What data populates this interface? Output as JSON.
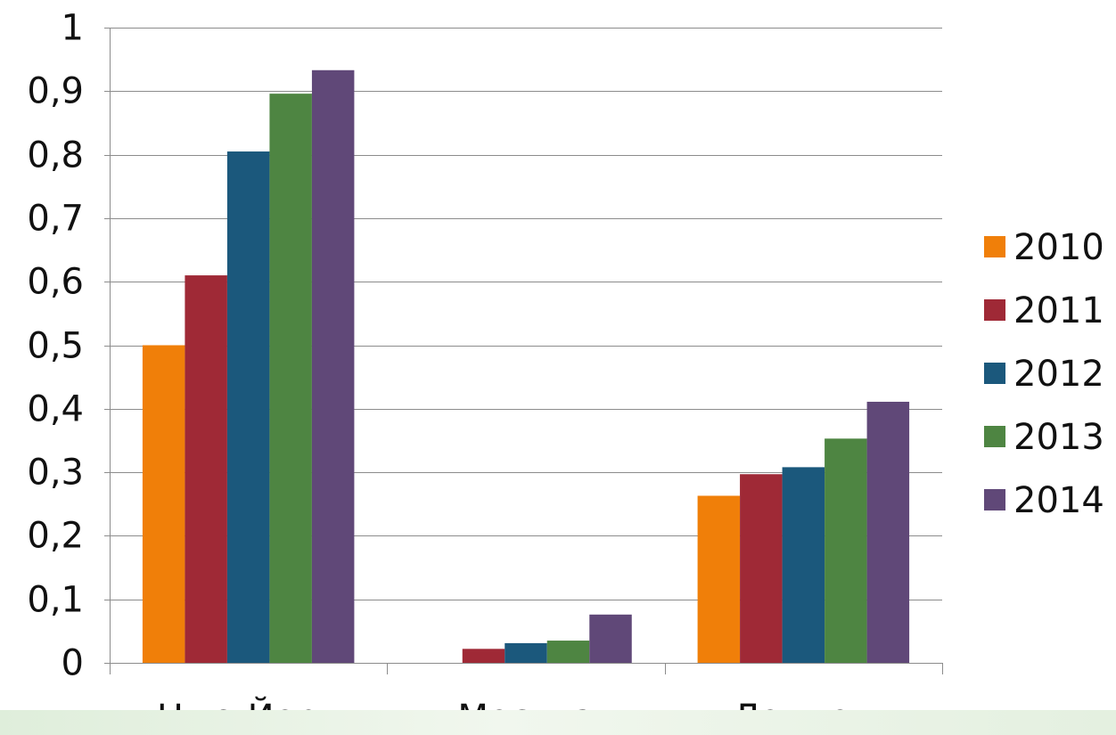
{
  "chart_data": {
    "type": "bar",
    "categories": [
      "Нью-Йорк",
      "Москва",
      "Лондон"
    ],
    "series": [
      {
        "name": "2010",
        "color": "#f07f09",
        "values": [
          0.5,
          0,
          0.263
        ]
      },
      {
        "name": "2011",
        "color": "#9f2936",
        "values": [
          0.61,
          0.022,
          0.297
        ]
      },
      {
        "name": "2012",
        "color": "#1b587c",
        "values": [
          0.805,
          0.031,
          0.308
        ]
      },
      {
        "name": "2013",
        "color": "#4e8542",
        "values": [
          0.896,
          0.035,
          0.353
        ]
      },
      {
        "name": "2014",
        "color": "#604878",
        "values": [
          0.933,
          0.076,
          0.411
        ]
      }
    ],
    "ylim": [
      0,
      1
    ],
    "yticks": [
      "0",
      "0,1",
      "0,2",
      "0,3",
      "0,4",
      "0,5",
      "0,6",
      "0,7",
      "0,8",
      "0,9",
      "1"
    ],
    "title": "",
    "xlabel": "",
    "ylabel": "",
    "grid": true,
    "legend_position": "right"
  }
}
